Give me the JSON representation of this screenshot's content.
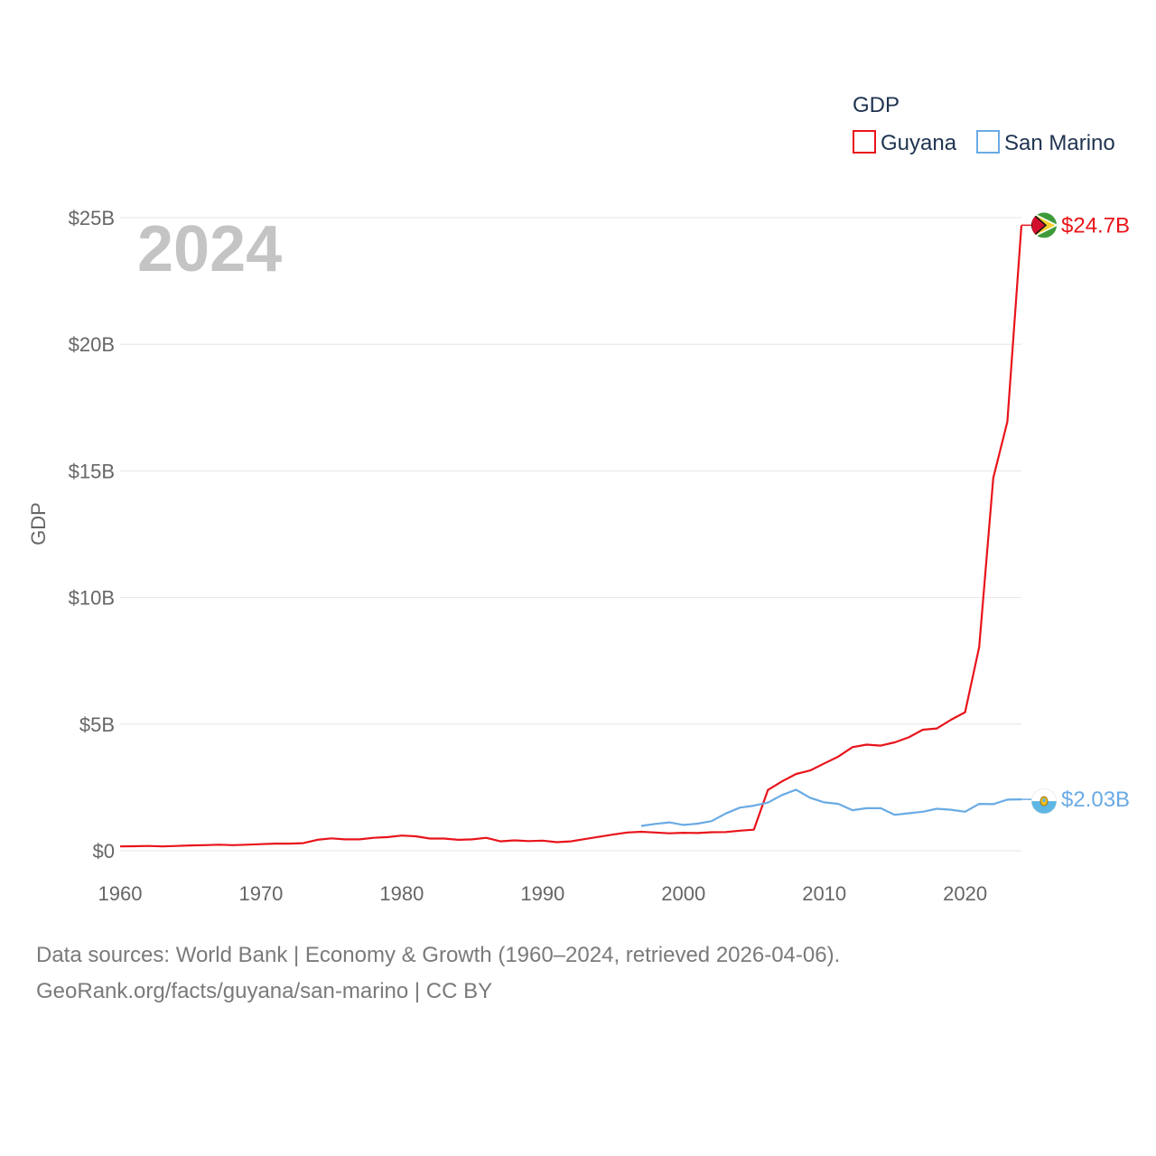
{
  "chart_data": {
    "type": "line",
    "title": "",
    "year_label": "2024",
    "xlabel": "",
    "ylabel": "GDP",
    "xlim": [
      1960,
      2024
    ],
    "ylim": [
      0,
      25
    ],
    "x_ticks": [
      {
        "value": 1960,
        "label": "1960"
      },
      {
        "value": 1970,
        "label": "1970"
      },
      {
        "value": 1980,
        "label": "1980"
      },
      {
        "value": 1990,
        "label": "1990"
      },
      {
        "value": 2000,
        "label": "2000"
      },
      {
        "value": 2010,
        "label": "2010"
      },
      {
        "value": 2020,
        "label": "2020"
      }
    ],
    "y_ticks": [
      {
        "value": 0,
        "label": "$0"
      },
      {
        "value": 5,
        "label": "$5B"
      },
      {
        "value": 10,
        "label": "$10B"
      },
      {
        "value": 15,
        "label": "$15B"
      },
      {
        "value": 20,
        "label": "$20B"
      },
      {
        "value": 25,
        "label": "$25B"
      }
    ],
    "legend": {
      "title": "GDP",
      "position": "top-right"
    },
    "series": [
      {
        "name": "Guyana",
        "color": "#e8141b",
        "end_label": "$24.7B",
        "flag_icon": "guyana-flag-icon",
        "x": [
          1960,
          1961,
          1962,
          1963,
          1964,
          1965,
          1966,
          1967,
          1968,
          1969,
          1970,
          1971,
          1972,
          1973,
          1974,
          1975,
          1976,
          1977,
          1978,
          1979,
          1980,
          1981,
          1982,
          1983,
          1984,
          1985,
          1986,
          1987,
          1988,
          1989,
          1990,
          1991,
          1992,
          1993,
          1994,
          1995,
          1996,
          1997,
          1998,
          1999,
          2000,
          2001,
          2002,
          2003,
          2004,
          2005,
          2006,
          2007,
          2008,
          2009,
          2010,
          2011,
          2012,
          2013,
          2014,
          2015,
          2016,
          2017,
          2018,
          2019,
          2020,
          2021,
          2022,
          2023,
          2024
        ],
        "values": [
          0.17,
          0.18,
          0.19,
          0.17,
          0.19,
          0.21,
          0.22,
          0.24,
          0.22,
          0.24,
          0.26,
          0.28,
          0.28,
          0.3,
          0.43,
          0.49,
          0.45,
          0.45,
          0.51,
          0.54,
          0.6,
          0.57,
          0.48,
          0.48,
          0.43,
          0.45,
          0.51,
          0.37,
          0.41,
          0.38,
          0.4,
          0.34,
          0.37,
          0.46,
          0.55,
          0.64,
          0.72,
          0.75,
          0.72,
          0.69,
          0.71,
          0.7,
          0.73,
          0.74,
          0.79,
          0.83,
          2.4,
          2.74,
          3.03,
          3.17,
          3.45,
          3.72,
          4.09,
          4.19,
          4.15,
          4.28,
          4.48,
          4.78,
          4.83,
          5.17,
          5.47,
          8.04,
          14.72,
          16.94,
          24.7
        ]
      },
      {
        "name": "San Marino",
        "color": "#6aaae4",
        "end_label": "$2.03B",
        "flag_icon": "san-marino-flag-icon",
        "x": [
          1997,
          1998,
          1999,
          2000,
          2001,
          2002,
          2003,
          2004,
          2005,
          2006,
          2007,
          2008,
          2009,
          2010,
          2011,
          2012,
          2013,
          2014,
          2015,
          2016,
          2017,
          2018,
          2019,
          2020,
          2021,
          2022,
          2023,
          2024
        ],
        "values": [
          0.98,
          1.06,
          1.12,
          1.02,
          1.07,
          1.17,
          1.47,
          1.7,
          1.78,
          1.9,
          2.2,
          2.41,
          2.09,
          1.91,
          1.85,
          1.6,
          1.68,
          1.68,
          1.42,
          1.48,
          1.54,
          1.66,
          1.62,
          1.54,
          1.85,
          1.84,
          2.02,
          2.03
        ]
      }
    ]
  },
  "footer": {
    "line1": "Data sources: World Bank | Economy & Growth (1960–2024, retrieved 2026-04-06).",
    "line2": "GeoRank.org/facts/guyana/san-marino | CC BY"
  }
}
